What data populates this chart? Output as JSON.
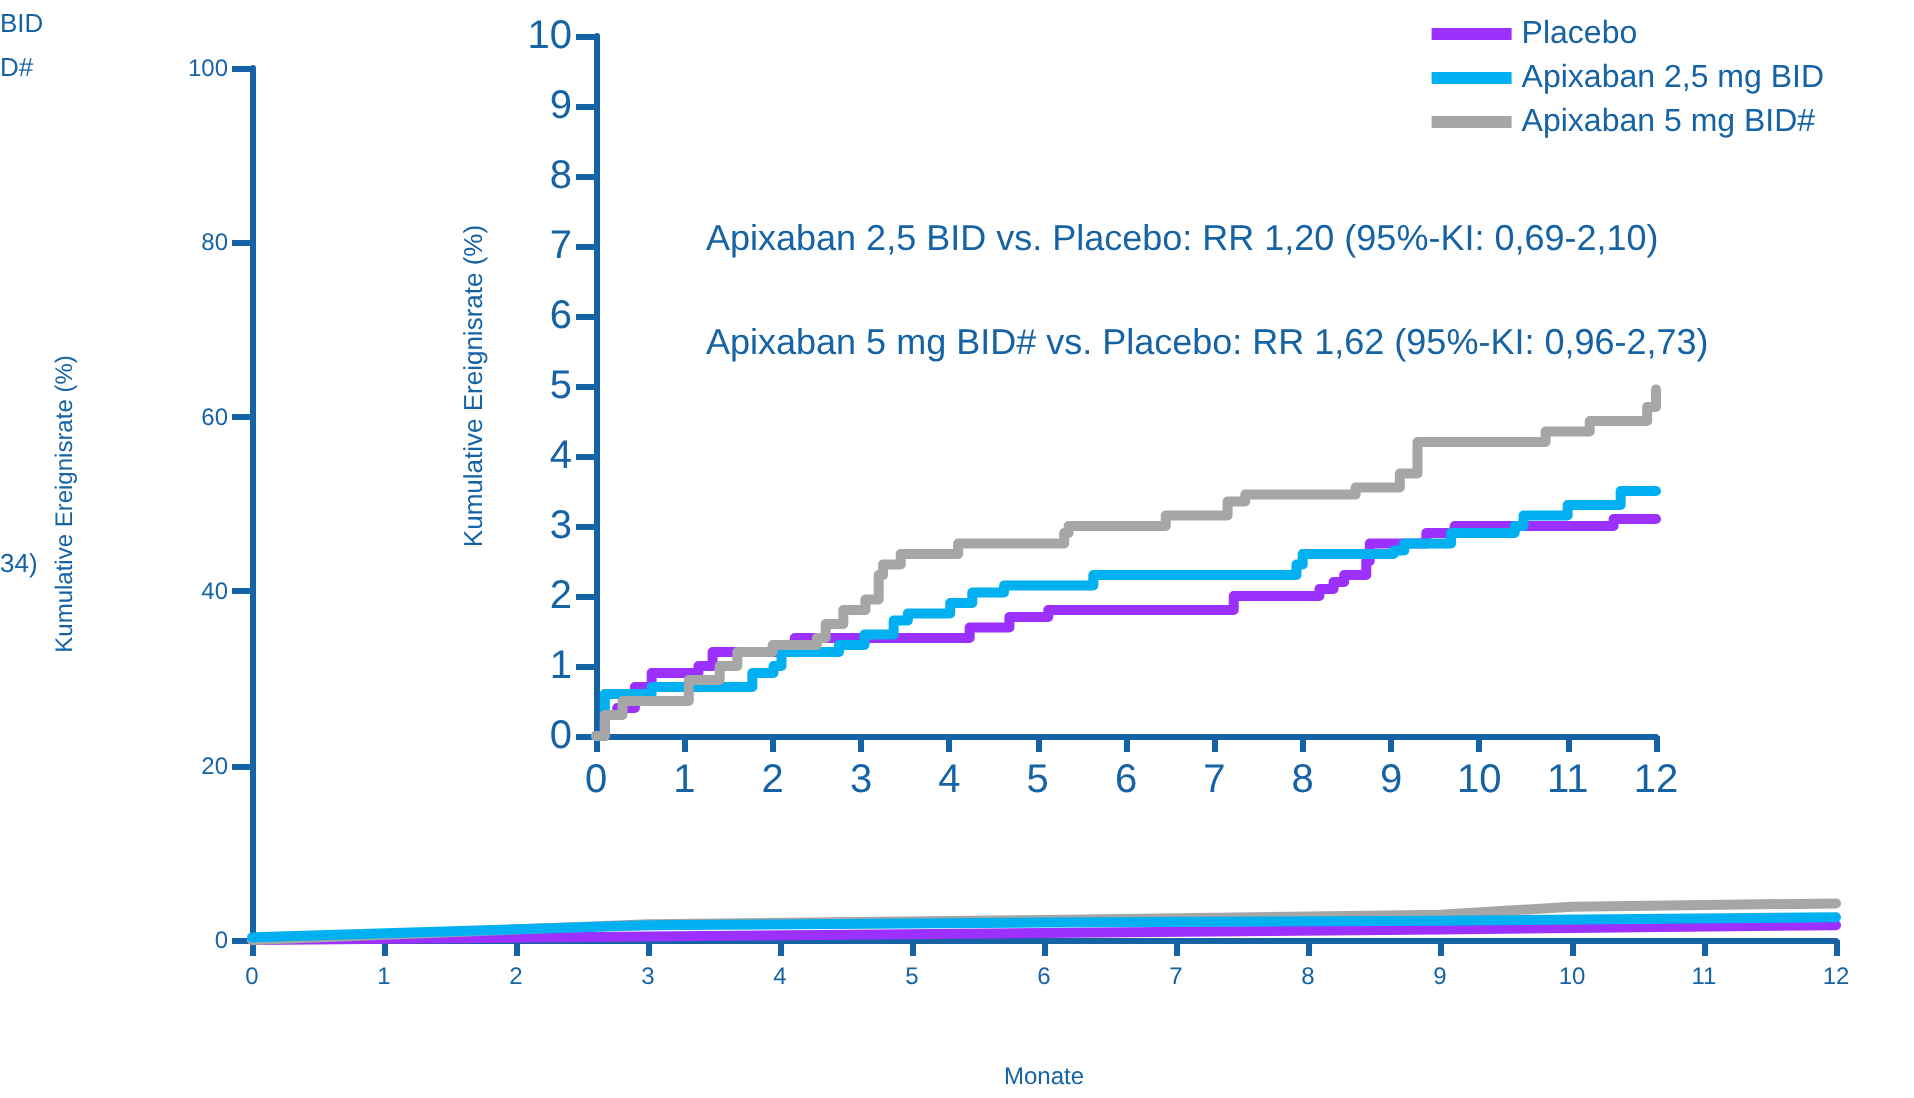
{
  "chart_data": [
    {
      "type": "line",
      "xlabel": "Monate",
      "ylabel": "Kumulative Ereignisrate (%)",
      "xlim": [
        0,
        12
      ],
      "xticks": [
        0,
        1,
        2,
        3,
        4,
        5,
        6,
        7,
        8,
        9,
        10,
        11,
        12
      ],
      "ylim": [
        0,
        100
      ],
      "yticks": [
        0,
        20,
        40,
        60,
        80,
        100
      ],
      "grid": false,
      "legend": false,
      "marker": "none",
      "annotations": [
        "BID",
        "D#",
        "34)"
      ],
      "series": [
        {
          "color": "#9b30ff",
          "x": [
            0,
            3,
            6,
            9,
            12
          ],
          "values": [
            0,
            0.4,
            0.8,
            1.2,
            1.7
          ]
        },
        {
          "color": "#a6a6a6",
          "x": [
            0,
            3,
            6,
            9,
            10,
            12
          ],
          "values": [
            0,
            1.8,
            2.3,
            2.9,
            3.8,
            4.2
          ]
        },
        {
          "color": "#00b0f0",
          "x": [
            0,
            3,
            6,
            9,
            12
          ],
          "values": [
            0.3,
            1.7,
            2.0,
            2.2,
            2.6
          ]
        }
      ]
    },
    {
      "type": "step",
      "ylabel": "Kumulative Ereignisrate (%)",
      "xlim": [
        0,
        12
      ],
      "xticks": [
        0,
        1,
        2,
        3,
        4,
        5,
        6,
        7,
        8,
        9,
        10,
        11,
        12
      ],
      "ylim": [
        0,
        10
      ],
      "yticks": [
        0,
        1,
        2,
        3,
        4,
        5,
        6,
        7,
        8,
        9,
        10
      ],
      "grid": false,
      "legend": "top right",
      "marker": "none",
      "annotations": [
        "Apixaban 2,5 BID vs. Placebo: RR 1,20 (95%-KI: 0,69-2,10)",
        "Apixaban 5 mg BID# vs. Placebo: RR 1,62 (95%-KI: 0,96-2,73)"
      ],
      "series": [
        {
          "name": "Placebo",
          "color": "#9b30ff",
          "x": [
            0,
            0.1,
            0.24,
            0.44,
            0.63,
            1.16,
            1.32,
            2.05,
            2.25,
            4.23,
            4.68,
            5.12,
            7.22,
            8.19,
            8.35,
            8.47,
            8.72,
            8.76,
            9.4,
            9.72,
            11.52,
            12
          ],
          "values": [
            0,
            0.3,
            0.4,
            0.7,
            0.9,
            1.0,
            1.2,
            1.3,
            1.4,
            1.55,
            1.7,
            1.8,
            2.0,
            2.1,
            2.2,
            2.3,
            2.5,
            2.75,
            2.9,
            3.0,
            3.1,
            3.1
          ]
        },
        {
          "name": "Apixaban 2,5 mg BID",
          "color": "#00b0f0",
          "x": [
            0,
            0.1,
            0.63,
            1.77,
            2.01,
            2.1,
            2.75,
            3.04,
            3.37,
            3.53,
            4.01,
            4.26,
            4.62,
            5.63,
            7.93,
            8.0,
            9.03,
            9.15,
            9.68,
            10.4,
            10.5,
            11.0,
            11.6,
            12
          ],
          "values": [
            0,
            0.6,
            0.7,
            0.9,
            1.0,
            1.2,
            1.3,
            1.45,
            1.65,
            1.75,
            1.9,
            2.05,
            2.15,
            2.3,
            2.45,
            2.6,
            2.65,
            2.75,
            2.9,
            3.0,
            3.15,
            3.3,
            3.5,
            3.5
          ]
        },
        {
          "name": "Apixaban 5 mg BID#",
          "color": "#a6a6a6",
          "x": [
            0,
            0.1,
            0.3,
            1.05,
            1.4,
            1.6,
            2.0,
            2.5,
            2.6,
            2.8,
            3.05,
            3.2,
            3.25,
            3.45,
            4.1,
            5.3,
            5.35,
            6.45,
            7.15,
            7.35,
            8.6,
            9.1,
            9.3,
            10.75,
            11.25,
            11.9,
            12
          ],
          "values": [
            0,
            0.3,
            0.5,
            0.8,
            1.0,
            1.2,
            1.3,
            1.4,
            1.6,
            1.8,
            1.95,
            2.3,
            2.45,
            2.6,
            2.75,
            2.9,
            3.0,
            3.15,
            3.35,
            3.45,
            3.55,
            3.75,
            4.2,
            4.35,
            4.5,
            4.7,
            4.95
          ]
        }
      ]
    }
  ]
}
